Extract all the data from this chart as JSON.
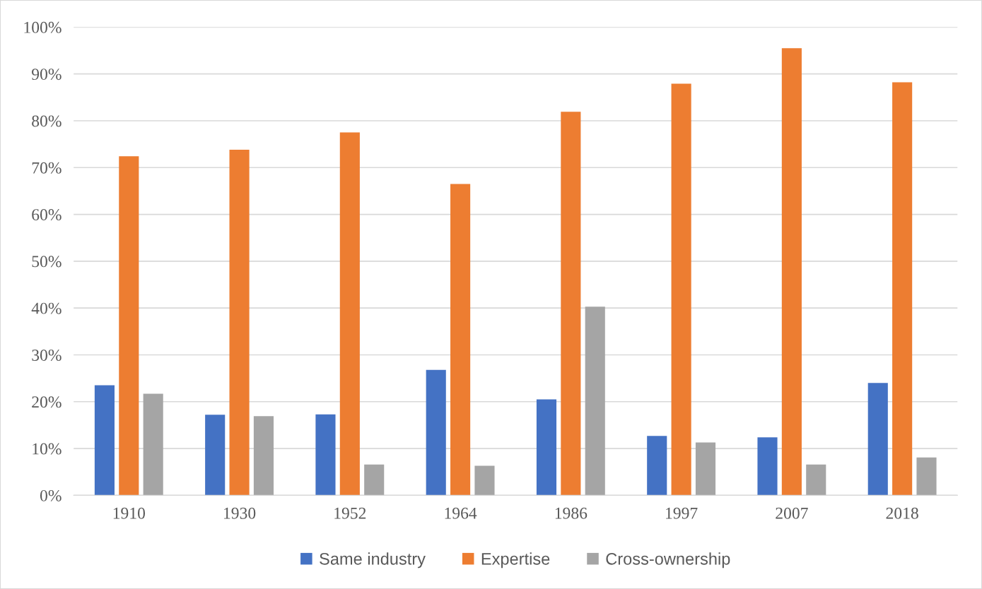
{
  "chart_data": {
    "type": "bar",
    "categories": [
      "1910",
      "1930",
      "1952",
      "1964",
      "1986",
      "1997",
      "2007",
      "2018"
    ],
    "series": [
      {
        "name": "Same industry",
        "color": "#4472c4",
        "values": [
          23.5,
          17.2,
          17.3,
          26.8,
          20.5,
          12.7,
          12.4,
          24.0
        ]
      },
      {
        "name": "Expertise",
        "color": "#ed7d31",
        "values": [
          72.4,
          73.8,
          77.5,
          66.5,
          81.9,
          87.9,
          95.5,
          88.2
        ]
      },
      {
        "name": "Cross-ownership",
        "color": "#a5a5a5",
        "values": [
          21.7,
          16.9,
          6.6,
          6.3,
          40.3,
          11.3,
          6.6,
          8.1
        ]
      }
    ],
    "ylim": [
      0,
      100
    ],
    "yticks": [
      {
        "value": 0,
        "label": "0%"
      },
      {
        "value": 10,
        "label": "10%"
      },
      {
        "value": 20,
        "label": "20%"
      },
      {
        "value": 30,
        "label": "30%"
      },
      {
        "value": 40,
        "label": "40%"
      },
      {
        "value": 50,
        "label": "50%"
      },
      {
        "value": 60,
        "label": "60%"
      },
      {
        "value": 70,
        "label": "70%"
      },
      {
        "value": 80,
        "label": "80%"
      },
      {
        "value": 90,
        "label": "90%"
      },
      {
        "value": 100,
        "label": "100%"
      }
    ],
    "grid": "y",
    "legend": "bottom"
  }
}
